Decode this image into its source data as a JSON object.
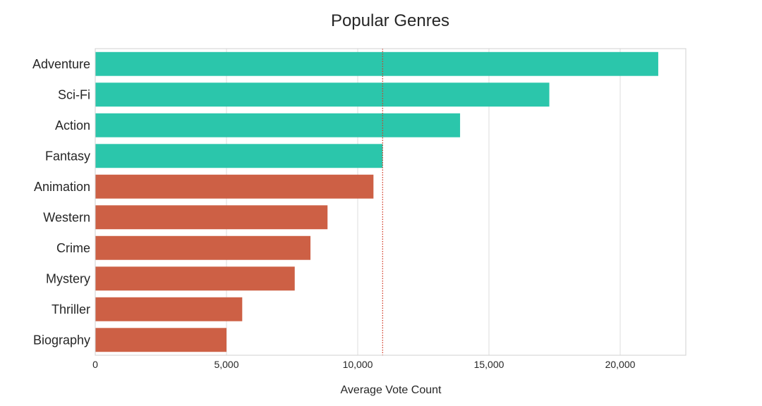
{
  "chart_data": {
    "type": "bar",
    "orientation": "horizontal",
    "title": "Popular Genres",
    "xlabel": "Average Vote Count",
    "ylabel": "",
    "categories": [
      "Adventure",
      "Sci-Fi",
      "Action",
      "Fantasy",
      "Animation",
      "Western",
      "Crime",
      "Mystery",
      "Thriller",
      "Biography"
    ],
    "values": [
      21450,
      17300,
      13900,
      10950,
      10600,
      8850,
      8200,
      7600,
      5600,
      5000
    ],
    "bar_colors": [
      "#2bc6ab",
      "#2bc6ab",
      "#2bc6ab",
      "#2bc6ab",
      "#cd6045",
      "#cd6045",
      "#cd6045",
      "#cd6045",
      "#cd6045",
      "#cd6045"
    ],
    "xlim": [
      0,
      22500
    ],
    "xticks": [
      0,
      5000,
      10000,
      15000,
      20000
    ],
    "xtick_labels": [
      "0",
      "5,000",
      "10,000",
      "15,000",
      "20,000"
    ],
    "reference_line": {
      "value": 10950,
      "style": "dotted",
      "color": "#d23c28"
    },
    "grid": true,
    "legend": "none"
  }
}
